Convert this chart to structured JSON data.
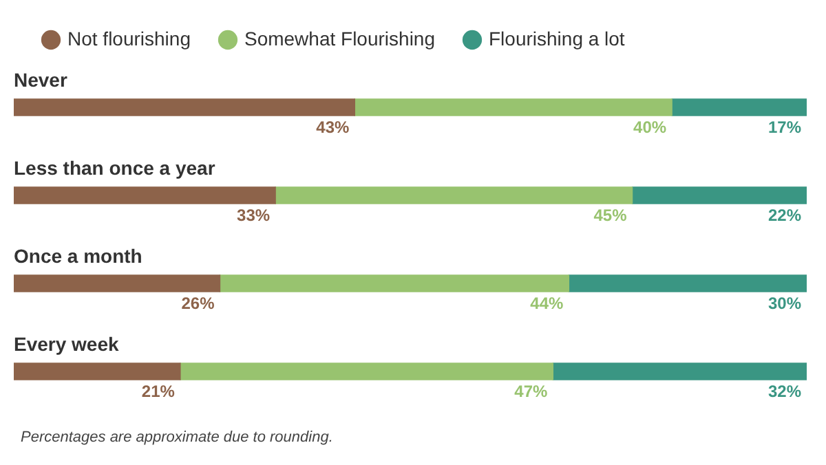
{
  "chart_data": {
    "type": "bar",
    "orientation": "horizontal",
    "stacked": true,
    "legend": "top left",
    "categories": [
      "Never",
      "Less than once a year",
      "Once a month",
      "Every week"
    ],
    "series": [
      {
        "name": "Not flourishing",
        "color": "#8d634a",
        "values": [
          43,
          33,
          26,
          21
        ],
        "value_labels": [
          "43%",
          "33%",
          "26%",
          "21%"
        ]
      },
      {
        "name": "Somewhat Flourishing",
        "color": "#98c36f",
        "values": [
          40,
          45,
          44,
          47
        ],
        "value_labels": [
          "40%",
          "45%",
          "44%",
          "47%"
        ]
      },
      {
        "name": "Flourishing a lot",
        "color": "#3a9683",
        "values": [
          17,
          22,
          30,
          32
        ],
        "value_labels": [
          "17%",
          "22%",
          "30%",
          "32%"
        ]
      }
    ],
    "annotations": [
      "Percentages are approximate due to rounding."
    ]
  }
}
